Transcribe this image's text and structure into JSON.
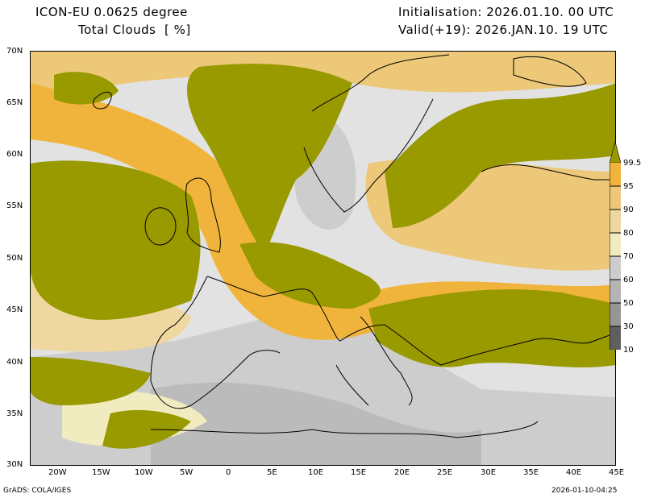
{
  "header": {
    "model": "ICON-EU 0.0625 degree",
    "variable": "Total Clouds  [ %]",
    "init": "Initialisation: 2026.01.10. 00 UTC",
    "valid": "Valid(+19): 2026.JAN.10. 19 UTC"
  },
  "footer": {
    "credit": "GrADS: COLA/IGES",
    "timestamp": "2026-01-10-04:25"
  },
  "axes": {
    "lat_labels": [
      "70N",
      "65N",
      "60N",
      "55N",
      "50N",
      "45N",
      "40N",
      "35N",
      "30N"
    ],
    "lon_labels": [
      "20W",
      "15W",
      "10W",
      "5W",
      "0",
      "5E",
      "10E",
      "15E",
      "20E",
      "25E",
      "30E",
      "35E",
      "40E",
      "45E"
    ]
  },
  "colorbar": {
    "labels": [
      "99.5",
      "95",
      "90",
      "80",
      "70",
      "60",
      "50",
      "30",
      "10"
    ],
    "colors": {
      "above_99_5": "#999900",
      "95_99_5": "#f0b43c",
      "90_95": "#ecc878",
      "80_90": "#eed8a0",
      "70_80": "#f0ecc0",
      "60_70": "#cdcdcd",
      "50_60": "#b4b4b4",
      "30_50": "#969696",
      "10_30": "#5f5f5f",
      "below_10": "#e2e2e2"
    }
  }
}
